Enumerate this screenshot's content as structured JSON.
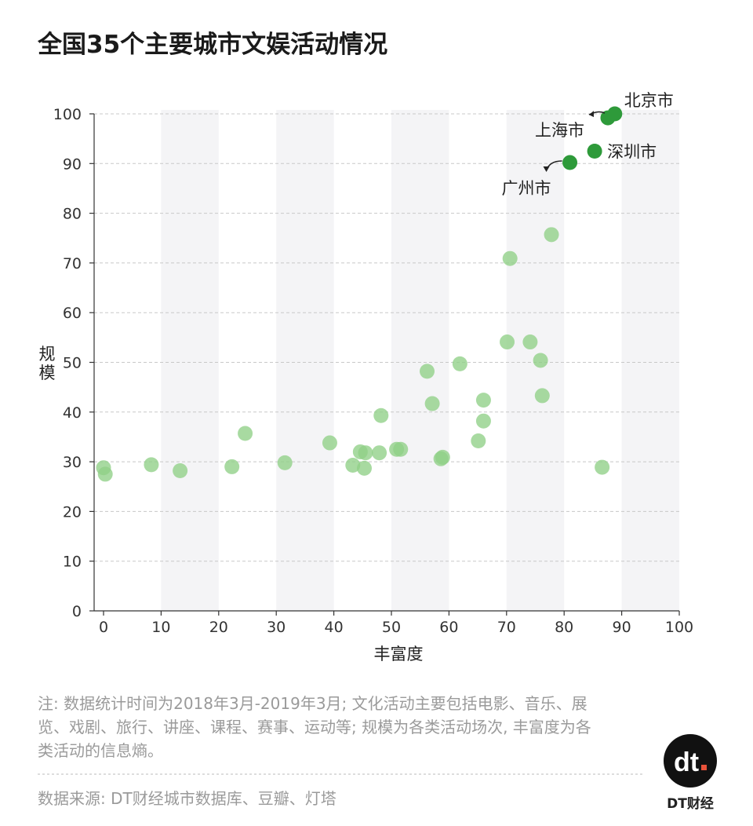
{
  "chart_data": {
    "type": "scatter",
    "title": "全国35个主要城市文娱活动情况",
    "xlabel": "丰富度",
    "ylabel": "规模",
    "xlim": [
      0,
      100
    ],
    "ylim": [
      0,
      100
    ],
    "x_ticks": [
      "0",
      "10",
      "20",
      "30",
      "40",
      "50",
      "60",
      "70",
      "80",
      "90",
      "100"
    ],
    "y_ticks": [
      "0",
      "10",
      "20",
      "30",
      "40",
      "50",
      "60",
      "70",
      "80",
      "90",
      "100"
    ],
    "grid": "horizontal dashed lines, alternating vertical bands",
    "highlight_color": "#2e9a3a",
    "point_color": "#8fcf86",
    "highlighted_points": [
      {
        "label": "北京市",
        "x": 88.8,
        "y": 100
      },
      {
        "label": "上海市",
        "x": 87.6,
        "y": 99.2
      },
      {
        "label": "深圳市",
        "x": 85.3,
        "y": 92.5
      },
      {
        "label": "广州市",
        "x": 81.0,
        "y": 90.2
      }
    ],
    "points": [
      {
        "x": 0,
        "y": 28.8
      },
      {
        "x": 0.3,
        "y": 27.5
      },
      {
        "x": 8.3,
        "y": 29.4
      },
      {
        "x": 13.3,
        "y": 28.2
      },
      {
        "x": 22.3,
        "y": 29.0
      },
      {
        "x": 24.6,
        "y": 35.7
      },
      {
        "x": 31.5,
        "y": 29.8
      },
      {
        "x": 39.3,
        "y": 33.8
      },
      {
        "x": 43.3,
        "y": 29.3
      },
      {
        "x": 44.6,
        "y": 32.0
      },
      {
        "x": 45.3,
        "y": 28.7
      },
      {
        "x": 45.5,
        "y": 31.8
      },
      {
        "x": 47.9,
        "y": 31.8
      },
      {
        "x": 48.2,
        "y": 39.3
      },
      {
        "x": 50.9,
        "y": 32.5
      },
      {
        "x": 51.6,
        "y": 32.5
      },
      {
        "x": 56.2,
        "y": 48.2
      },
      {
        "x": 57.1,
        "y": 41.7
      },
      {
        "x": 58.6,
        "y": 30.6
      },
      {
        "x": 58.9,
        "y": 30.9
      },
      {
        "x": 61.9,
        "y": 49.7
      },
      {
        "x": 65.1,
        "y": 34.2
      },
      {
        "x": 66.0,
        "y": 42.4
      },
      {
        "x": 66.0,
        "y": 38.2
      },
      {
        "x": 70.1,
        "y": 54.1
      },
      {
        "x": 70.6,
        "y": 70.9
      },
      {
        "x": 74.1,
        "y": 54.1
      },
      {
        "x": 75.9,
        "y": 50.4
      },
      {
        "x": 76.2,
        "y": 43.3
      },
      {
        "x": 77.8,
        "y": 75.7
      },
      {
        "x": 86.6,
        "y": 28.9
      }
    ]
  },
  "note": {
    "lines": [
      "注: 数据统计时间为2018年3月-2019年3月; 文化活动主要包括电影、音乐、展",
      "览、戏剧、旅行、讲座、课程、赛事、运动等; 规模为各类活动场次, 丰富度为各",
      "类活动的信息熵。"
    ],
    "source": "数据来源: DT财经城市数据库、豆瓣、灯塔"
  },
  "logo": {
    "mark": "dt",
    "text": "DT财经",
    "mark_color": "#111111",
    "dot_color": "#e8523a"
  }
}
